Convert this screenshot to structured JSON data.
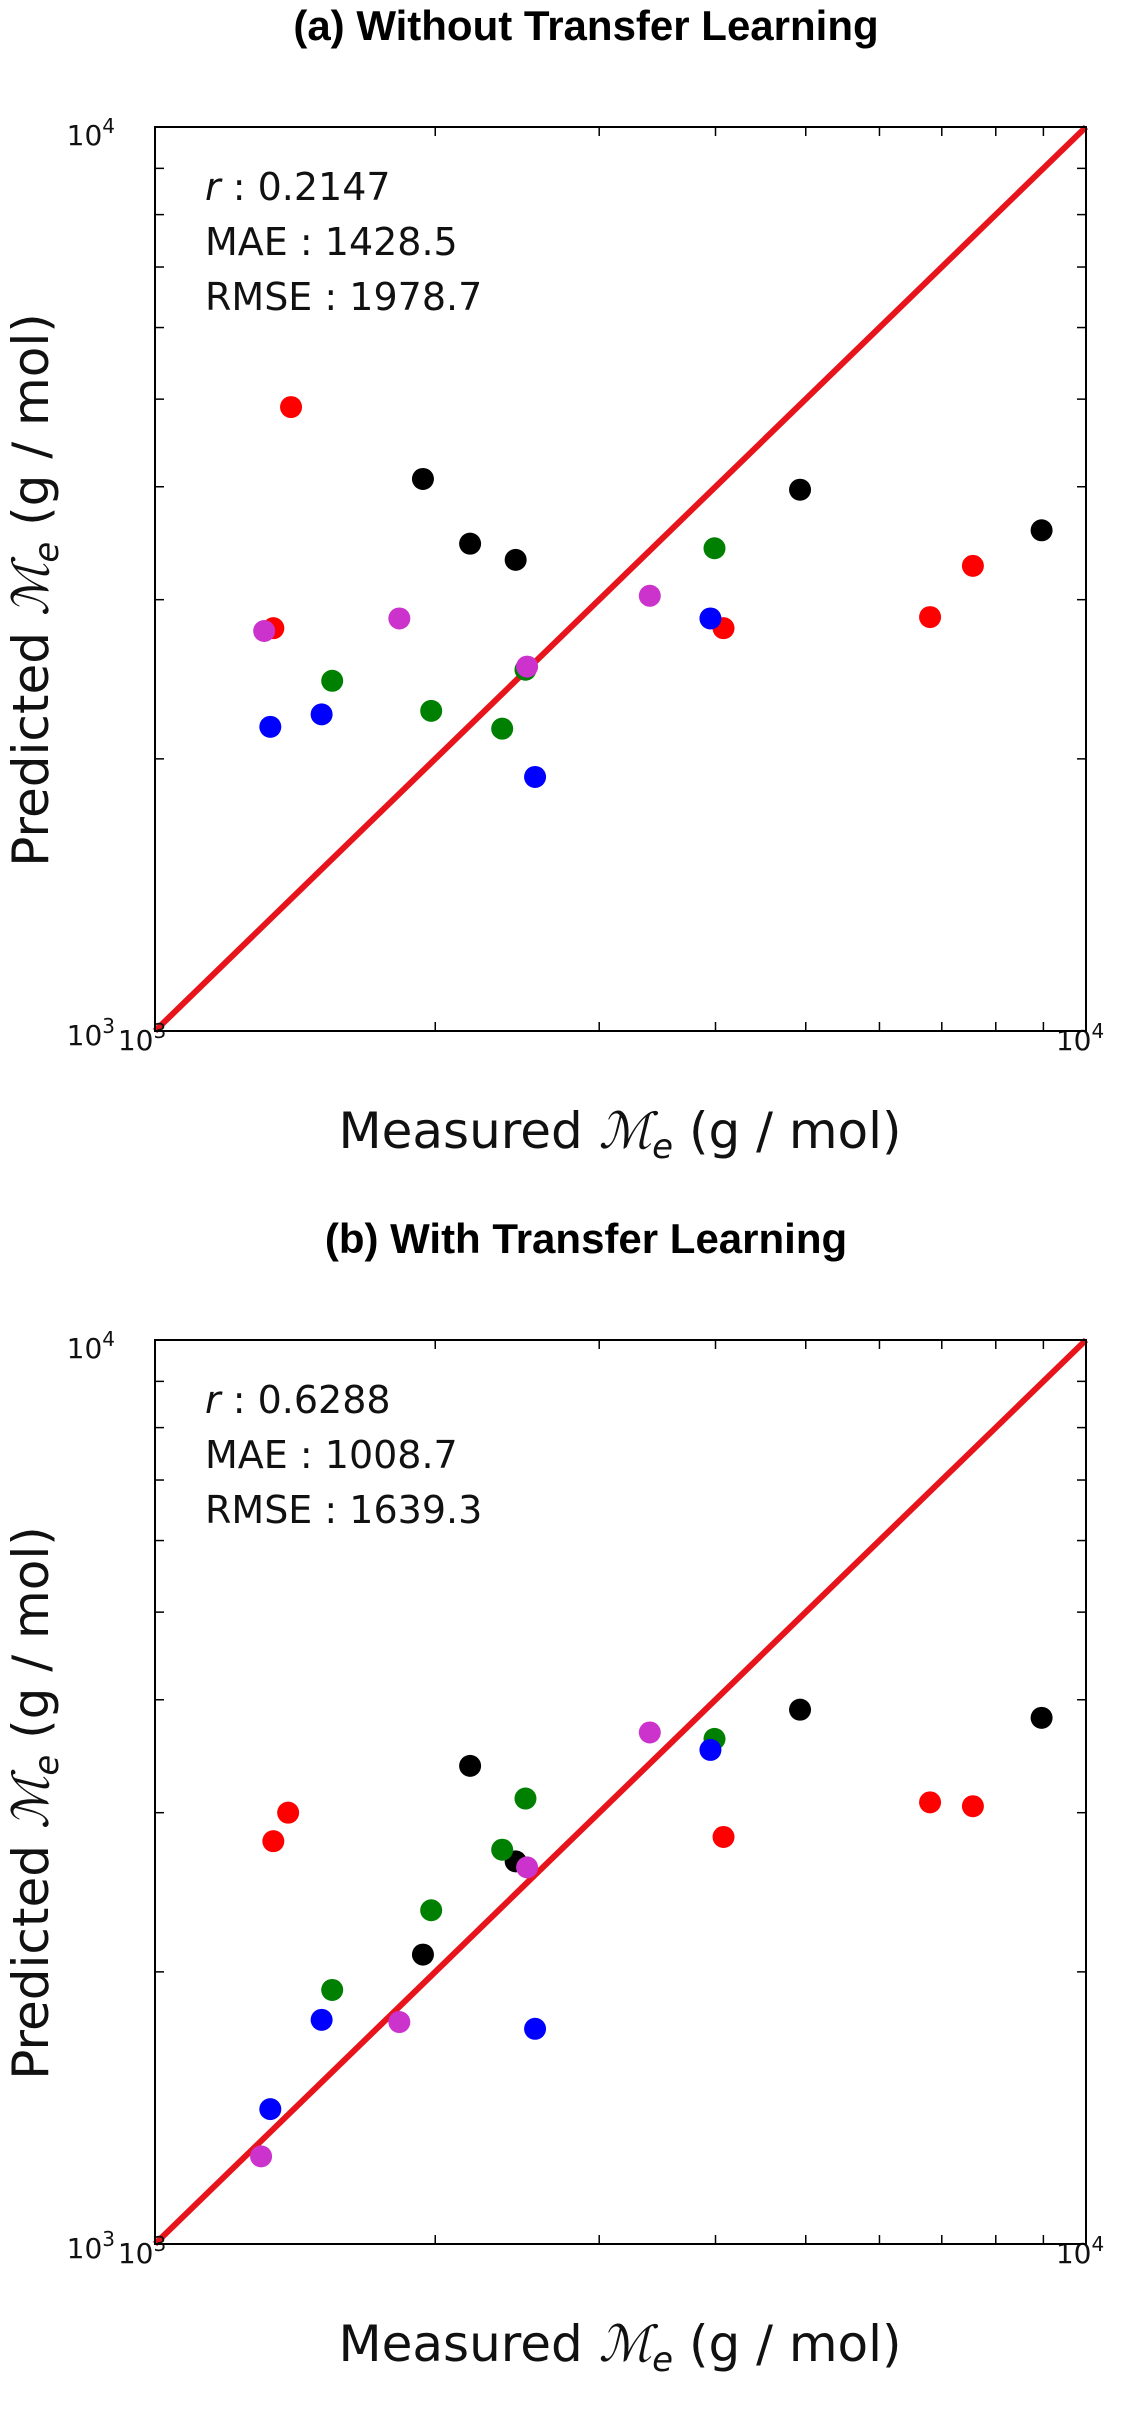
{
  "chart_data": [
    {
      "type": "scatter",
      "title": "(a) Without Transfer Learning",
      "xlabel_prefix": "Measured",
      "ylabel_prefix": "Predicted",
      "label_symbol": "ℳ",
      "label_subscript": "e",
      "label_unit": "(g / mol)",
      "x_scale": "log",
      "y_scale": "log",
      "xlim": [
        1000,
        10000
      ],
      "ylim": [
        1000,
        10000
      ],
      "x_tick_labels": [
        {
          "base": "10",
          "exp": "3"
        },
        {
          "base": "10",
          "exp": "4"
        }
      ],
      "y_tick_labels": [
        {
          "base": "10",
          "exp": "3"
        },
        {
          "base": "10",
          "exp": "4"
        }
      ],
      "grid": false,
      "stats": [
        {
          "label": "r",
          "italic": true,
          "value": ": 0.2147"
        },
        {
          "label": "MAE",
          "italic": false,
          "value": ": 1428.5"
        },
        {
          "label": "RMSE",
          "italic": false,
          "value": ": 1978.7"
        }
      ],
      "reference_line": {
        "x": [
          1000,
          10000
        ],
        "y": [
          1000,
          10000
        ],
        "color": "#e8141b"
      },
      "series": [
        {
          "color": "#ff0000",
          "points": [
            [
              1400,
              4900
            ],
            [
              1340,
              2790
            ],
            [
              4080,
              2790
            ],
            [
              6800,
              2870
            ],
            [
              7560,
              3270
            ]
          ]
        },
        {
          "color": "#000000",
          "points": [
            [
              1940,
              4080
            ],
            [
              2180,
              3460
            ],
            [
              2440,
              3320
            ],
            [
              4930,
              3970
            ],
            [
              8960,
              3580
            ]
          ]
        },
        {
          "color": "#008000",
          "points": [
            [
              1550,
              2440
            ],
            [
              1980,
              2260
            ],
            [
              2360,
              2160
            ],
            [
              2500,
              2510
            ],
            [
              3990,
              3420
            ]
          ]
        },
        {
          "color": "#0000ff",
          "points": [
            [
              1330,
              2170
            ],
            [
              1510,
              2240
            ],
            [
              2560,
              1910
            ],
            [
              3950,
              2860
            ]
          ]
        },
        {
          "color": "#cc33cc",
          "points": [
            [
              1310,
              2770
            ],
            [
              1830,
              2860
            ],
            [
              2510,
              2530
            ],
            [
              3400,
              3030
            ]
          ]
        }
      ]
    },
    {
      "type": "scatter",
      "title": "(b) With Transfer Learning",
      "xlabel_prefix": "Measured",
      "ylabel_prefix": "Predicted",
      "label_symbol": "ℳ",
      "label_subscript": "e",
      "label_unit": "(g / mol)",
      "x_scale": "log",
      "y_scale": "log",
      "xlim": [
        1000,
        10000
      ],
      "ylim": [
        1000,
        10000
      ],
      "x_tick_labels": [
        {
          "base": "10",
          "exp": "3"
        },
        {
          "base": "10",
          "exp": "4"
        }
      ],
      "y_tick_labels": [
        {
          "base": "10",
          "exp": "3"
        },
        {
          "base": "10",
          "exp": "4"
        }
      ],
      "grid": false,
      "stats": [
        {
          "label": "r",
          "italic": true,
          "value": ": 0.6288"
        },
        {
          "label": "MAE",
          "italic": false,
          "value": ": 1008.7"
        },
        {
          "label": "RMSE",
          "italic": false,
          "value": ": 1639.3"
        }
      ],
      "reference_line": {
        "x": [
          1000,
          10000
        ],
        "y": [
          1000,
          10000
        ],
        "color": "#e8141b"
      },
      "series": [
        {
          "color": "#ff0000",
          "points": [
            [
              1340,
              2790
            ],
            [
              1390,
              3000
            ],
            [
              4080,
              2820
            ],
            [
              6800,
              3080
            ],
            [
              7560,
              3050
            ]
          ]
        },
        {
          "color": "#000000",
          "points": [
            [
              1940,
              2090
            ],
            [
              2180,
              3380
            ],
            [
              2440,
              2650
            ],
            [
              4930,
              3900
            ],
            [
              8960,
              3820
            ]
          ]
        },
        {
          "color": "#008000",
          "points": [
            [
              1550,
              1910
            ],
            [
              1980,
              2340
            ],
            [
              2360,
              2730
            ],
            [
              2500,
              3110
            ],
            [
              3990,
              3620
            ]
          ]
        },
        {
          "color": "#0000ff",
          "points": [
            [
              1330,
              1410
            ],
            [
              1510,
              1770
            ],
            [
              2560,
              1730
            ],
            [
              3950,
              3520
            ]
          ]
        },
        {
          "color": "#cc33cc",
          "points": [
            [
              1300,
              1250
            ],
            [
              1830,
              1760
            ],
            [
              2510,
              2610
            ],
            [
              3400,
              3680
            ]
          ]
        }
      ]
    }
  ]
}
